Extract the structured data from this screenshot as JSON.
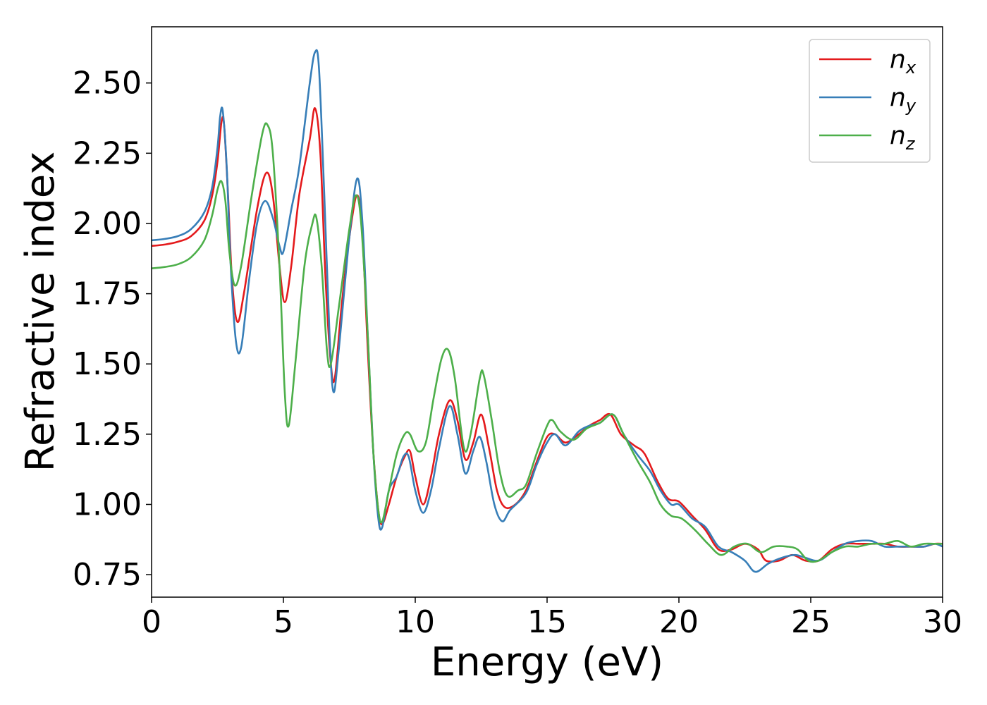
{
  "chart_data": {
    "type": "line",
    "title": "",
    "xlabel": "Energy (eV)",
    "ylabel": "Refractive index",
    "xlim": [
      0,
      30
    ],
    "ylim": [
      0.67,
      2.7
    ],
    "xticks": [
      0,
      5,
      10,
      15,
      20,
      25,
      30
    ],
    "xtick_labels": [
      "0",
      "5",
      "10",
      "15",
      "20",
      "25",
      "30"
    ],
    "yticks": [
      0.75,
      1.0,
      1.25,
      1.5,
      1.75,
      2.0,
      2.25,
      2.5
    ],
    "ytick_labels": [
      "0.75",
      "1.00",
      "1.25",
      "1.50",
      "1.75",
      "2.00",
      "2.25",
      "2.50"
    ],
    "grid": false,
    "legend_position": "top-right",
    "series": [
      {
        "name": "n",
        "sub": "x",
        "color": "#e41a1c",
        "points": [
          [
            0,
            1.92
          ],
          [
            0.5,
            1.925
          ],
          [
            1,
            1.935
          ],
          [
            1.5,
            1.955
          ],
          [
            2,
            2.01
          ],
          [
            2.3,
            2.1
          ],
          [
            2.5,
            2.22
          ],
          [
            2.65,
            2.36
          ],
          [
            2.75,
            2.35
          ],
          [
            2.9,
            2.1
          ],
          [
            3.05,
            1.8
          ],
          [
            3.25,
            1.65
          ],
          [
            3.5,
            1.75
          ],
          [
            4.0,
            2.05
          ],
          [
            4.35,
            2.18
          ],
          [
            4.6,
            2.1
          ],
          [
            4.85,
            1.85
          ],
          [
            5.05,
            1.72
          ],
          [
            5.3,
            1.85
          ],
          [
            5.6,
            2.1
          ],
          [
            6.0,
            2.3
          ],
          [
            6.2,
            2.41
          ],
          [
            6.4,
            2.25
          ],
          [
            6.6,
            1.8
          ],
          [
            6.8,
            1.5
          ],
          [
            6.95,
            1.45
          ],
          [
            7.2,
            1.7
          ],
          [
            7.5,
            1.95
          ],
          [
            7.8,
            2.1
          ],
          [
            8.0,
            1.95
          ],
          [
            8.2,
            1.55
          ],
          [
            8.4,
            1.2
          ],
          [
            8.6,
            0.98
          ],
          [
            8.75,
            0.93
          ],
          [
            9.0,
            1.0
          ],
          [
            9.3,
            1.1
          ],
          [
            9.6,
            1.17
          ],
          [
            9.8,
            1.19
          ],
          [
            10.0,
            1.1
          ],
          [
            10.3,
            1.0
          ],
          [
            10.6,
            1.1
          ],
          [
            10.9,
            1.25
          ],
          [
            11.3,
            1.37
          ],
          [
            11.6,
            1.3
          ],
          [
            11.9,
            1.16
          ],
          [
            12.2,
            1.22
          ],
          [
            12.5,
            1.32
          ],
          [
            12.8,
            1.2
          ],
          [
            13.1,
            1.05
          ],
          [
            13.4,
            0.99
          ],
          [
            13.8,
            1.0
          ],
          [
            14.2,
            1.05
          ],
          [
            14.6,
            1.15
          ],
          [
            15.0,
            1.24
          ],
          [
            15.3,
            1.25
          ],
          [
            15.7,
            1.22
          ],
          [
            16.2,
            1.25
          ],
          [
            16.6,
            1.28
          ],
          [
            17.0,
            1.3
          ],
          [
            17.4,
            1.32
          ],
          [
            17.8,
            1.25
          ],
          [
            18.3,
            1.21
          ],
          [
            18.7,
            1.18
          ],
          [
            19.2,
            1.08
          ],
          [
            19.6,
            1.02
          ],
          [
            20.0,
            1.01
          ],
          [
            20.5,
            0.96
          ],
          [
            21.0,
            0.91
          ],
          [
            21.5,
            0.84
          ],
          [
            22.0,
            0.84
          ],
          [
            22.5,
            0.86
          ],
          [
            23.0,
            0.84
          ],
          [
            23.3,
            0.8
          ],
          [
            23.8,
            0.8
          ],
          [
            24.3,
            0.82
          ],
          [
            24.8,
            0.8
          ],
          [
            25.3,
            0.8
          ],
          [
            25.8,
            0.84
          ],
          [
            26.3,
            0.86
          ],
          [
            26.8,
            0.86
          ],
          [
            27.3,
            0.86
          ],
          [
            27.8,
            0.86
          ],
          [
            28.3,
            0.85
          ],
          [
            28.8,
            0.85
          ],
          [
            29.3,
            0.85
          ],
          [
            29.7,
            0.86
          ],
          [
            30,
            0.86
          ]
        ]
      },
      {
        "name": "n",
        "sub": "y",
        "color": "#377eb8",
        "points": [
          [
            0,
            1.94
          ],
          [
            0.5,
            1.945
          ],
          [
            1,
            1.955
          ],
          [
            1.5,
            1.98
          ],
          [
            2,
            2.04
          ],
          [
            2.3,
            2.13
          ],
          [
            2.5,
            2.27
          ],
          [
            2.6,
            2.38
          ],
          [
            2.7,
            2.4
          ],
          [
            2.85,
            2.2
          ],
          [
            3.0,
            1.85
          ],
          [
            3.2,
            1.58
          ],
          [
            3.4,
            1.56
          ],
          [
            3.7,
            1.8
          ],
          [
            4.0,
            2.0
          ],
          [
            4.3,
            2.08
          ],
          [
            4.6,
            2.02
          ],
          [
            4.85,
            1.92
          ],
          [
            5.0,
            1.9
          ],
          [
            5.3,
            2.05
          ],
          [
            5.6,
            2.2
          ],
          [
            6.0,
            2.5
          ],
          [
            6.2,
            2.61
          ],
          [
            6.35,
            2.55
          ],
          [
            6.55,
            2.1
          ],
          [
            6.75,
            1.6
          ],
          [
            6.9,
            1.4
          ],
          [
            7.1,
            1.55
          ],
          [
            7.5,
            1.95
          ],
          [
            7.8,
            2.16
          ],
          [
            8.0,
            2.0
          ],
          [
            8.2,
            1.6
          ],
          [
            8.4,
            1.2
          ],
          [
            8.6,
            0.95
          ],
          [
            8.75,
            0.92
          ],
          [
            9.0,
            1.05
          ],
          [
            9.3,
            1.1
          ],
          [
            9.55,
            1.17
          ],
          [
            9.75,
            1.17
          ],
          [
            10.0,
            1.05
          ],
          [
            10.3,
            0.97
          ],
          [
            10.6,
            1.05
          ],
          [
            10.9,
            1.2
          ],
          [
            11.3,
            1.35
          ],
          [
            11.6,
            1.25
          ],
          [
            11.9,
            1.11
          ],
          [
            12.2,
            1.19
          ],
          [
            12.45,
            1.24
          ],
          [
            12.7,
            1.15
          ],
          [
            13.0,
            1.0
          ],
          [
            13.3,
            0.94
          ],
          [
            13.6,
            0.98
          ],
          [
            14.2,
            1.04
          ],
          [
            14.6,
            1.14
          ],
          [
            15.0,
            1.22
          ],
          [
            15.3,
            1.25
          ],
          [
            15.7,
            1.21
          ],
          [
            16.2,
            1.26
          ],
          [
            16.6,
            1.28
          ],
          [
            17.0,
            1.29
          ],
          [
            17.5,
            1.32
          ],
          [
            17.9,
            1.25
          ],
          [
            18.4,
            1.18
          ],
          [
            18.9,
            1.12
          ],
          [
            19.3,
            1.05
          ],
          [
            19.7,
            1.0
          ],
          [
            20.0,
            1.0
          ],
          [
            20.5,
            0.95
          ],
          [
            21.0,
            0.92
          ],
          [
            21.5,
            0.85
          ],
          [
            22.0,
            0.83
          ],
          [
            22.5,
            0.8
          ],
          [
            22.9,
            0.76
          ],
          [
            23.4,
            0.79
          ],
          [
            23.9,
            0.81
          ],
          [
            24.4,
            0.82
          ],
          [
            24.8,
            0.81
          ],
          [
            25.3,
            0.8
          ],
          [
            25.8,
            0.83
          ],
          [
            26.3,
            0.86
          ],
          [
            26.8,
            0.87
          ],
          [
            27.3,
            0.87
          ],
          [
            27.8,
            0.85
          ],
          [
            28.3,
            0.85
          ],
          [
            28.8,
            0.85
          ],
          [
            29.3,
            0.85
          ],
          [
            29.7,
            0.86
          ],
          [
            30,
            0.85
          ]
        ]
      },
      {
        "name": "n",
        "sub": "z",
        "color": "#4daf4a",
        "points": [
          [
            0,
            1.84
          ],
          [
            0.5,
            1.845
          ],
          [
            1,
            1.855
          ],
          [
            1.5,
            1.88
          ],
          [
            2,
            1.94
          ],
          [
            2.3,
            2.03
          ],
          [
            2.5,
            2.12
          ],
          [
            2.65,
            2.15
          ],
          [
            2.8,
            2.08
          ],
          [
            2.95,
            1.9
          ],
          [
            3.15,
            1.78
          ],
          [
            3.4,
            1.85
          ],
          [
            3.8,
            2.1
          ],
          [
            4.2,
            2.32
          ],
          [
            4.4,
            2.35
          ],
          [
            4.6,
            2.25
          ],
          [
            4.85,
            1.85
          ],
          [
            5.05,
            1.4
          ],
          [
            5.2,
            1.28
          ],
          [
            5.45,
            1.5
          ],
          [
            5.8,
            1.85
          ],
          [
            6.1,
            2.0
          ],
          [
            6.25,
            2.02
          ],
          [
            6.45,
            1.85
          ],
          [
            6.65,
            1.55
          ],
          [
            6.8,
            1.5
          ],
          [
            7.1,
            1.7
          ],
          [
            7.5,
            1.98
          ],
          [
            7.75,
            2.1
          ],
          [
            7.95,
            2.0
          ],
          [
            8.2,
            1.6
          ],
          [
            8.4,
            1.2
          ],
          [
            8.6,
            0.98
          ],
          [
            8.75,
            0.94
          ],
          [
            9.0,
            1.05
          ],
          [
            9.3,
            1.18
          ],
          [
            9.6,
            1.25
          ],
          [
            9.8,
            1.25
          ],
          [
            10.1,
            1.19
          ],
          [
            10.4,
            1.22
          ],
          [
            10.7,
            1.38
          ],
          [
            11.0,
            1.52
          ],
          [
            11.25,
            1.55
          ],
          [
            11.5,
            1.45
          ],
          [
            11.85,
            1.2
          ],
          [
            12.1,
            1.25
          ],
          [
            12.45,
            1.45
          ],
          [
            12.6,
            1.46
          ],
          [
            12.9,
            1.3
          ],
          [
            13.2,
            1.12
          ],
          [
            13.5,
            1.03
          ],
          [
            13.9,
            1.05
          ],
          [
            14.2,
            1.07
          ],
          [
            14.6,
            1.18
          ],
          [
            15.0,
            1.28
          ],
          [
            15.2,
            1.3
          ],
          [
            15.5,
            1.26
          ],
          [
            16.0,
            1.23
          ],
          [
            16.5,
            1.27
          ],
          [
            17.0,
            1.29
          ],
          [
            17.5,
            1.32
          ],
          [
            17.9,
            1.25
          ],
          [
            18.4,
            1.16
          ],
          [
            18.9,
            1.08
          ],
          [
            19.3,
            1.0
          ],
          [
            19.7,
            0.96
          ],
          [
            20.1,
            0.95
          ],
          [
            20.6,
            0.91
          ],
          [
            21.1,
            0.86
          ],
          [
            21.6,
            0.82
          ],
          [
            22.1,
            0.85
          ],
          [
            22.6,
            0.86
          ],
          [
            23.1,
            0.83
          ],
          [
            23.6,
            0.85
          ],
          [
            24.1,
            0.85
          ],
          [
            24.5,
            0.84
          ],
          [
            24.9,
            0.8
          ],
          [
            25.3,
            0.8
          ],
          [
            25.8,
            0.83
          ],
          [
            26.3,
            0.85
          ],
          [
            26.8,
            0.85
          ],
          [
            27.3,
            0.86
          ],
          [
            27.8,
            0.86
          ],
          [
            28.3,
            0.87
          ],
          [
            28.8,
            0.85
          ],
          [
            29.3,
            0.86
          ],
          [
            29.7,
            0.86
          ],
          [
            30,
            0.86
          ]
        ]
      }
    ]
  }
}
